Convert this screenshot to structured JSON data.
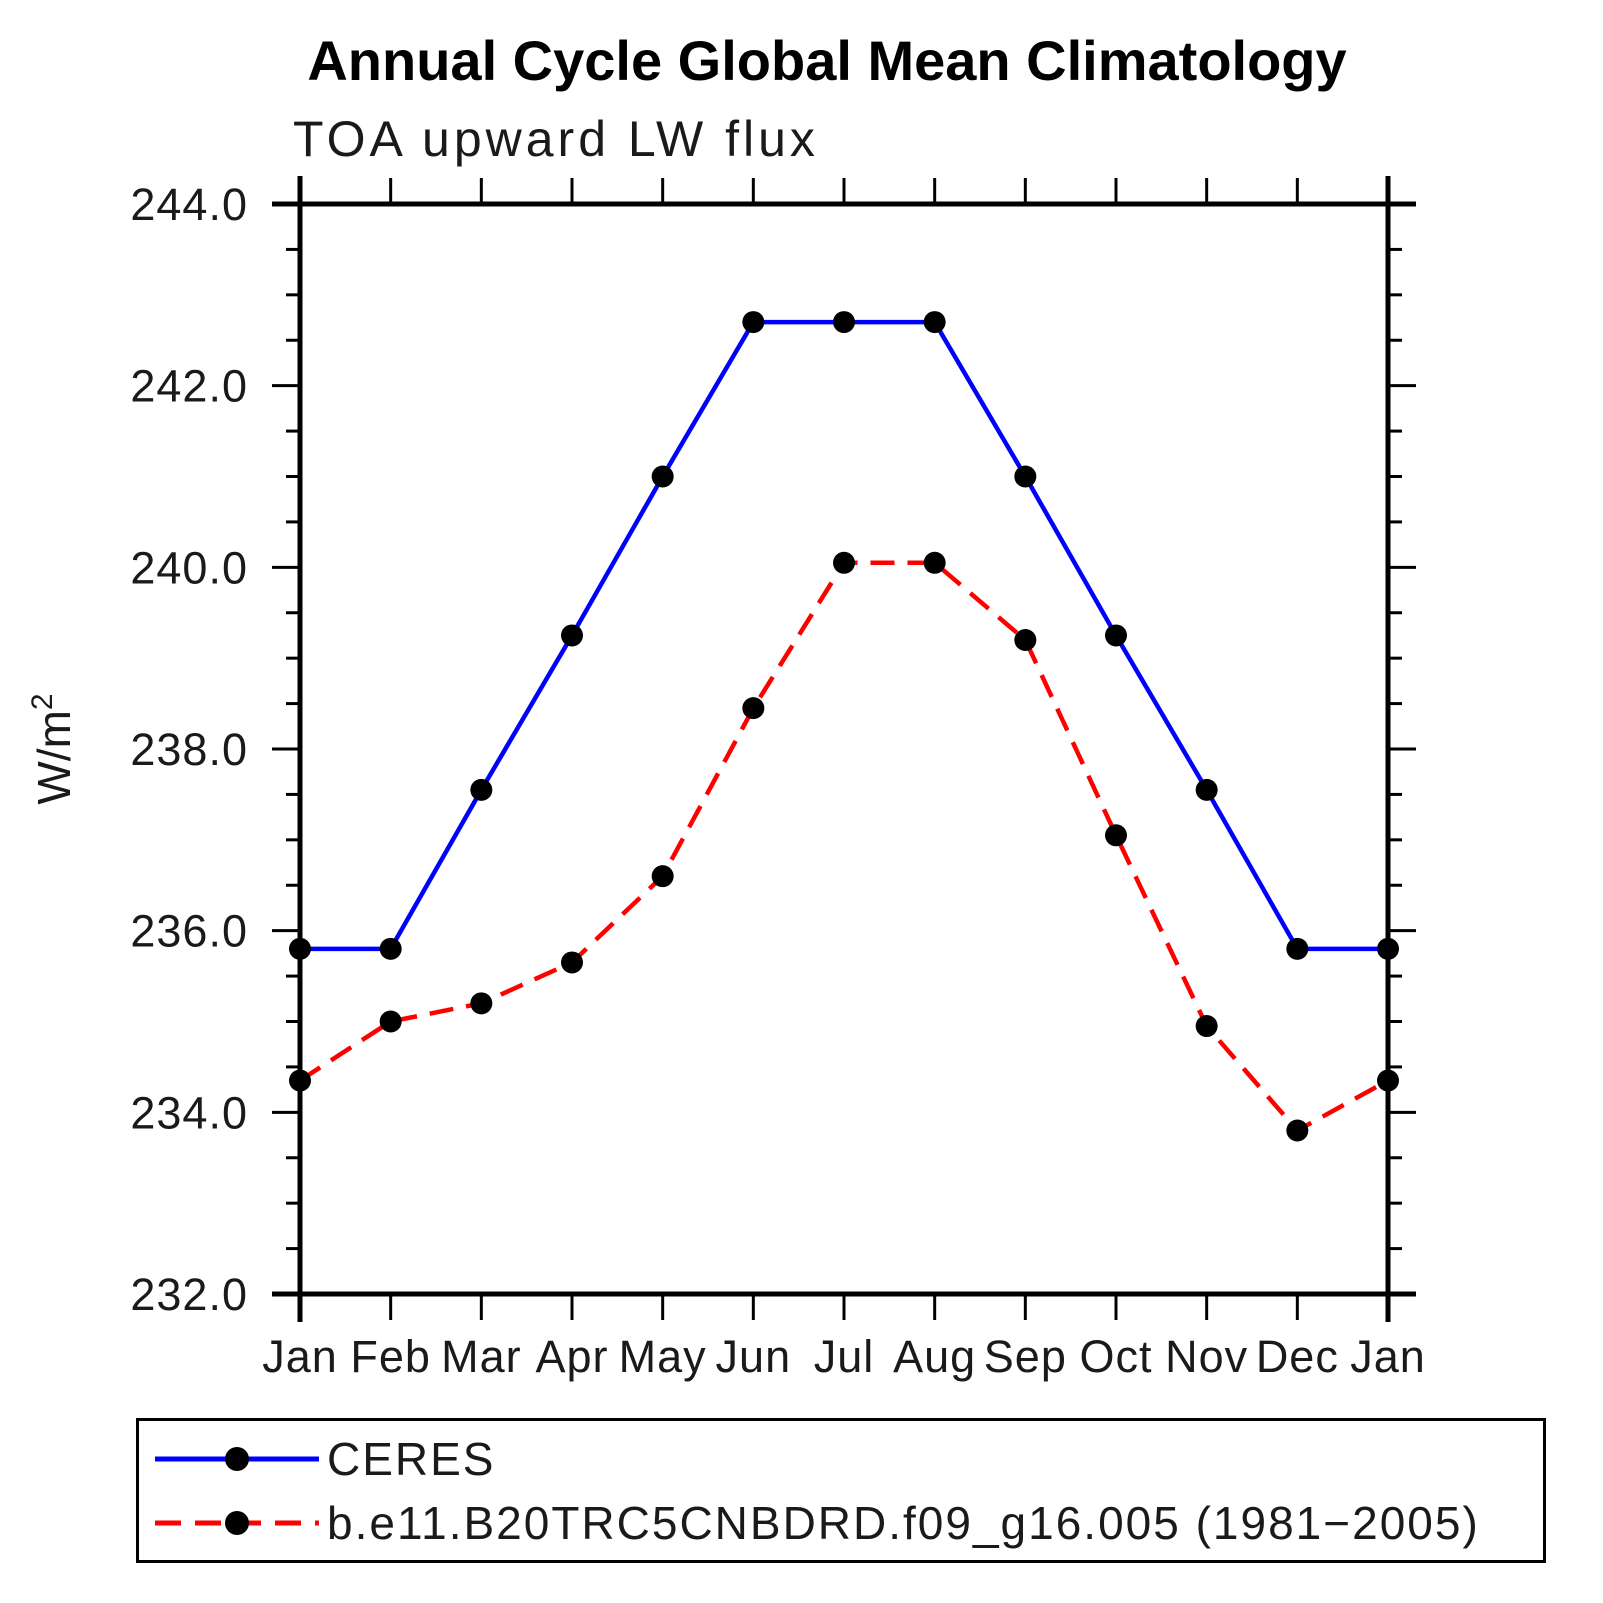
{
  "chart_data": {
    "type": "line",
    "title": "Annual Cycle Global Mean Climatology",
    "subtitle": "TOA upward LW flux",
    "ylabel": "W/m²",
    "ylabel_base": "W/m",
    "ylabel_sup": "2",
    "x_categories": [
      "Jan",
      "Feb",
      "Mar",
      "Apr",
      "May",
      "Jun",
      "Jul",
      "Aug",
      "Sep",
      "Oct",
      "Nov",
      "Dec",
      "Jan"
    ],
    "ylim": [
      232.0,
      244.0
    ],
    "ytick_step": 2.0,
    "yminor_step": 0.5,
    "ytick_labels": [
      "244.0",
      "242.0",
      "240.0",
      "238.0",
      "236.0",
      "234.0",
      "232.0"
    ],
    "grid": false,
    "legend_position": "bottom-left-box",
    "axis_color": "#000000",
    "marker_color": "#000000",
    "series": [
      {
        "name": "CERES",
        "color": "#0000ff",
        "style": "solid",
        "marker": "circle",
        "values": [
          235.8,
          235.8,
          237.55,
          239.25,
          241.0,
          242.7,
          242.7,
          242.7,
          241.0,
          239.25,
          237.55,
          235.8,
          235.8
        ]
      },
      {
        "name": "b.e11.B20TRC5CNBDRD.f09_g16.005 (1981−2005)",
        "color": "#ff0000",
        "style": "dashed",
        "marker": "circle",
        "values": [
          234.35,
          235.0,
          235.2,
          235.65,
          236.6,
          238.45,
          240.05,
          240.05,
          239.2,
          237.05,
          234.95,
          233.8,
          234.35
        ]
      }
    ]
  }
}
